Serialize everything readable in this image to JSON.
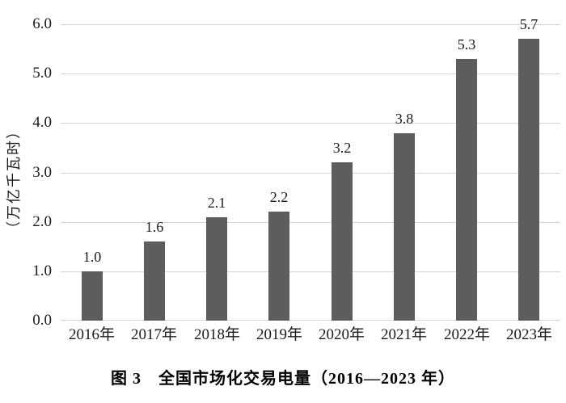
{
  "figure": {
    "caption": "图 3　全国市场化交易电量（2016—2023 年）"
  },
  "chart_data": {
    "type": "bar",
    "title": "图 3　全国市场化交易电量（2016—2023 年）",
    "categories": [
      "2016年",
      "2017年",
      "2018年",
      "2019年",
      "2020年",
      "2021年",
      "2022年",
      "2023年"
    ],
    "values": [
      1.0,
      1.6,
      2.1,
      2.2,
      3.2,
      3.8,
      5.3,
      5.7
    ],
    "value_labels": [
      "1.0",
      "1.6",
      "2.1",
      "2.2",
      "3.2",
      "3.8",
      "5.3",
      "5.7"
    ],
    "xlabel": "",
    "ylabel": "（万亿千瓦时）",
    "ylim": [
      0.0,
      6.0
    ],
    "ytick_step": 1.0,
    "ytick_labels": [
      "0.0",
      "1.0",
      "2.0",
      "3.0",
      "4.0",
      "5.0",
      "6.0"
    ],
    "grid": "horizontal",
    "legend_position": "none",
    "bar_color": "#5d5d5d",
    "gridline_color": "#d4d4d4",
    "text_color": "#1a1a1a"
  }
}
